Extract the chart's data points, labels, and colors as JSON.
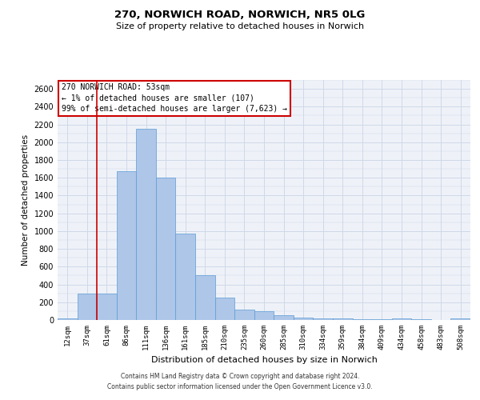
{
  "title1": "270, NORWICH ROAD, NORWICH, NR5 0LG",
  "title2": "Size of property relative to detached houses in Norwich",
  "xlabel": "Distribution of detached houses by size in Norwich",
  "ylabel": "Number of detached properties",
  "categories": [
    "12sqm",
    "37sqm",
    "61sqm",
    "86sqm",
    "111sqm",
    "136sqm",
    "161sqm",
    "185sqm",
    "210sqm",
    "235sqm",
    "260sqm",
    "285sqm",
    "310sqm",
    "334sqm",
    "359sqm",
    "384sqm",
    "409sqm",
    "434sqm",
    "458sqm",
    "483sqm",
    "508sqm"
  ],
  "values": [
    20,
    300,
    295,
    1670,
    2150,
    1600,
    970,
    500,
    248,
    120,
    100,
    50,
    30,
    18,
    15,
    10,
    8,
    20,
    5,
    3,
    20
  ],
  "bar_color": "#aec6e8",
  "bar_edge_color": "#5b9bd5",
  "vline_color": "#cc0000",
  "annotation_text": "270 NORWICH ROAD: 53sqm\n← 1% of detached houses are smaller (107)\n99% of semi-detached houses are larger (7,623) →",
  "annotation_box_color": "#ffffff",
  "annotation_box_edge": "#cc0000",
  "ylim": [
    0,
    2700
  ],
  "yticks": [
    0,
    200,
    400,
    600,
    800,
    1000,
    1200,
    1400,
    1600,
    1800,
    2000,
    2200,
    2400,
    2600
  ],
  "grid_color": "#d0d8e8",
  "background_color": "#eef2f8",
  "footer1": "Contains HM Land Registry data © Crown copyright and database right 2024.",
  "footer2": "Contains public sector information licensed under the Open Government Licence v3.0."
}
